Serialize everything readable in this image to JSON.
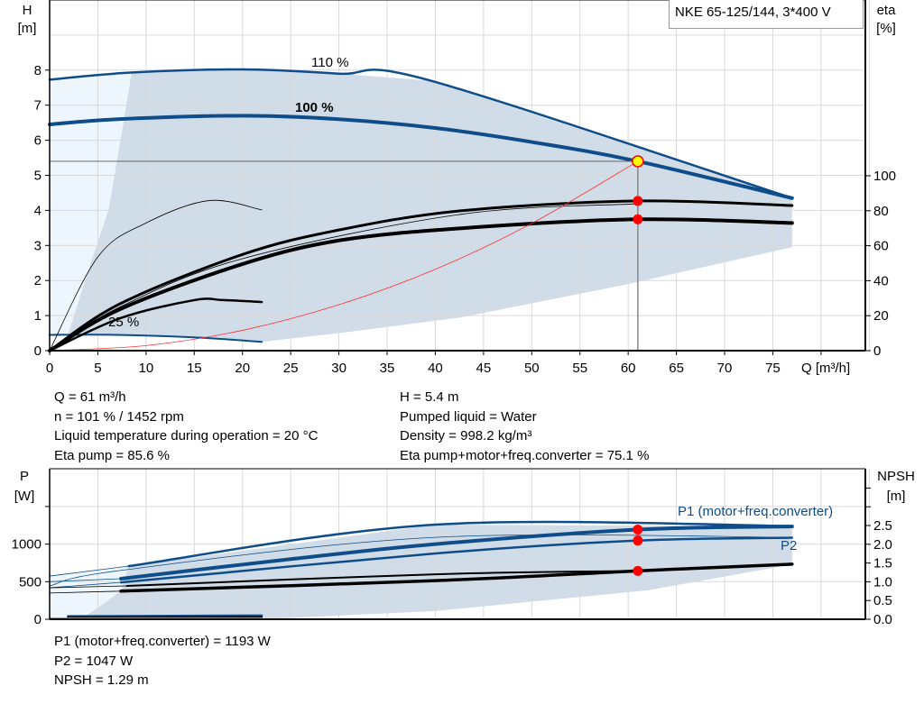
{
  "title": "NKE 65-125/144, 3*400 V",
  "colors": {
    "curve_blue": "#0e4d8a",
    "shade": "#d0dce8",
    "shade_light": "#eef6fd",
    "grid": "#d9d9d9",
    "system_curve": "#ff3030",
    "duty_point": "#ffff00",
    "marker": "#ff0000"
  },
  "info_top": {
    "left": [
      "Q = 61 m³/h",
      "n = 101 % / 1452 rpm",
      "Liquid temperature during operation = 20 °C",
      "Eta pump = 85.6 %"
    ],
    "right": [
      "H = 5.4 m",
      "Pumped liquid = Water",
      "Density = 998.2 kg/m³",
      "Eta pump+motor+freq.converter = 75.1 %"
    ]
  },
  "info_bottom": [
    "P1 (motor+freq.converter) = 1193 W",
    "P2 = 1047 W",
    "NPSH = 1.29 m"
  ],
  "chart_data": [
    {
      "type": "line",
      "ylabel": "H\n[m]",
      "y2label": "eta\n[%]",
      "xlabel": "Q [m³/h]",
      "xlim": [
        0,
        85
      ],
      "ylim": [
        0,
        10
      ],
      "y2lim": [
        0,
        200
      ],
      "grid": true,
      "x_ticks": [
        0,
        5,
        10,
        15,
        20,
        25,
        30,
        35,
        40,
        45,
        50,
        55,
        60,
        65,
        70,
        75
      ],
      "y_ticks": [
        0,
        1,
        2,
        3,
        4,
        5,
        6,
        7,
        8
      ],
      "y2_ticks": [
        0,
        20,
        40,
        60,
        80,
        100
      ],
      "region_light": [
        [
          0,
          0.45
        ],
        [
          0,
          7.73
        ],
        [
          8.5,
          7.93
        ],
        [
          7.6,
          6.4
        ],
        [
          6.1,
          4.0
        ],
        [
          4.2,
          2.45
        ],
        [
          1.9,
          0.45
        ]
      ],
      "region": [
        [
          8.5,
          7.93
        ],
        [
          20,
          8.02
        ],
        [
          30,
          7.9
        ],
        [
          39.5,
          7.7
        ],
        [
          77,
          4.35
        ],
        [
          77,
          2.95
        ],
        [
          60,
          1.9
        ],
        [
          42.7,
          0.95
        ],
        [
          30,
          0.5
        ],
        [
          22,
          0.25
        ],
        [
          15,
          0.38
        ],
        [
          7,
          0.45
        ],
        [
          1.9,
          0.45
        ],
        [
          4.2,
          2.45
        ],
        [
          6.1,
          4.0
        ],
        [
          7.6,
          6.4
        ]
      ],
      "series": [
        {
          "name": "110 %",
          "axis": "H",
          "color": "#0e4d8a",
          "width": 2.5,
          "points": [
            [
              0,
              7.73
            ],
            [
              8.4,
              7.93
            ],
            [
              20,
              8.02
            ],
            [
              30,
              7.9
            ],
            [
              39.5,
              7.7
            ],
            [
              77,
              4.35
            ]
          ]
        },
        {
          "name": "100 %",
          "axis": "H",
          "color": "#0e4d8a",
          "width": 4,
          "points": [
            [
              0,
              6.45
            ],
            [
              7,
              6.6
            ],
            [
              20,
              6.7
            ],
            [
              30,
              6.6
            ],
            [
              40,
              6.35
            ],
            [
              50,
              5.95
            ],
            [
              61,
              5.4
            ],
            [
              77,
              4.35
            ]
          ]
        },
        {
          "name": "25 %",
          "axis": "H",
          "color": "#0e4d8a",
          "width": 2,
          "points": [
            [
              0,
              0.45
            ],
            [
              7,
              0.45
            ],
            [
              15,
              0.38
            ],
            [
              22,
              0.25
            ]
          ]
        },
        {
          "axis": "eta",
          "color": "#000",
          "width": 0.8,
          "points": [
            [
              0,
              0
            ],
            [
              5,
              53.6
            ],
            [
              10,
              73
            ],
            [
              16.5,
              85.8
            ],
            [
              22,
              80.5
            ]
          ]
        },
        {
          "axis": "eta",
          "color": "#000",
          "width": 2.5,
          "points": [
            [
              0,
              0
            ],
            [
              7.3,
              18.5
            ],
            [
              15,
              28.9
            ],
            [
              18,
              28.9
            ],
            [
              22,
              27.8
            ]
          ]
        },
        {
          "axis": "eta",
          "color": "#000",
          "width": 3,
          "points": [
            [
              0,
              0
            ],
            [
              7.3,
              26.8
            ],
            [
              20,
              55
            ],
            [
              30,
              69
            ],
            [
              42.7,
              80
            ],
            [
              61,
              85.6
            ],
            [
              77,
              83
            ]
          ]
        },
        {
          "axis": "eta",
          "color": "#000",
          "width": 0.8,
          "points": [
            [
              0,
              0
            ],
            [
              7.3,
              25
            ],
            [
              20,
              52.6
            ],
            [
              42.7,
              78
            ],
            [
              61,
              84
            ]
          ]
        },
        {
          "axis": "eta",
          "color": "#000",
          "width": 4,
          "points": [
            [
              0,
              0
            ],
            [
              7.3,
              23.7
            ],
            [
              20,
              49.5
            ],
            [
              30,
              63
            ],
            [
              42.7,
              70
            ],
            [
              61,
              75.1
            ],
            [
              77,
              73
            ]
          ]
        },
        {
          "axis": "H",
          "color": "#ff3030",
          "width": 0.8,
          "system_curve": true,
          "points": [
            [
              0,
              0
            ],
            [
              10,
              0.145
            ],
            [
              20,
              0.58
            ],
            [
              30,
              1.31
            ],
            [
              40,
              2.32
            ],
            [
              50,
              3.63
            ],
            [
              61,
              5.4
            ]
          ]
        }
      ],
      "duty_point": {
        "Q": 61,
        "H": 5.4
      },
      "markers": [
        {
          "Q": 61,
          "eta": 85.6
        },
        {
          "Q": 61,
          "eta": 75.1
        }
      ]
    },
    {
      "type": "line",
      "ylabel": "P\n[W]",
      "y2label": "NPSH\n[m]",
      "xlim": [
        0,
        85
      ],
      "ylim": [
        0,
        2000
      ],
      "y2lim": [
        0,
        3.7
      ],
      "grid": true,
      "y_ticks": [
        0,
        500,
        1000
      ],
      "y2_ticks": [
        "0.0",
        "0.5",
        "1.0",
        "1.5",
        "2.0",
        "2.5"
      ],
      "region_light": [
        [
          0,
          0
        ],
        [
          0,
          575
        ],
        [
          8.2,
          707
        ],
        [
          7.4,
          380
        ],
        [
          5,
          150
        ],
        [
          3,
          30
        ]
      ],
      "region": [
        [
          8.2,
          707
        ],
        [
          40,
          1259
        ],
        [
          77,
          1235
        ],
        [
          77,
          730
        ],
        [
          74,
          660
        ],
        [
          62,
          385
        ],
        [
          40,
          110
        ],
        [
          22,
          0
        ],
        [
          3,
          0
        ],
        [
          5,
          150
        ],
        [
          7.4,
          380
        ]
      ],
      "series": [
        {
          "axis": "P",
          "color": "#0e4d8a",
          "width": 0.8,
          "points": [
            [
              0,
              575
            ],
            [
              8.2,
              707
            ]
          ]
        },
        {
          "axis": "P",
          "color": "#0e4d8a",
          "width": 2.5,
          "points": [
            [
              8.2,
              707
            ],
            [
              40,
              1259
            ],
            [
              77,
              1240
            ]
          ]
        },
        {
          "axis": "P",
          "color": "#0e4d8a",
          "width": 0.8,
          "points": [
            [
              0,
              500
            ],
            [
              7.4,
              540
            ]
          ]
        },
        {
          "name": "P1 (motor+freq.converter)",
          "axis": "P",
          "color": "#0e4d8a",
          "width": 4,
          "points": [
            [
              7.4,
              540
            ],
            [
              25,
              800
            ],
            [
              40,
              1000
            ],
            [
              61,
              1193
            ],
            [
              77,
              1235
            ]
          ]
        },
        {
          "axis": "P",
          "color": "#0e4d8a",
          "width": 0.8,
          "points": [
            [
              0,
              445
            ],
            [
              7.4,
              650
            ],
            [
              40,
              1090
            ],
            [
              77,
              1090
            ]
          ]
        },
        {
          "axis": "P",
          "color": "#0e4d8a",
          "width": 0.8,
          "points": [
            [
              0,
              420
            ],
            [
              7.4,
              490
            ]
          ]
        },
        {
          "name": "P2",
          "axis": "P",
          "color": "#0e4d8a",
          "width": 2.5,
          "points": [
            [
              7.4,
              490
            ],
            [
              40,
              875
            ],
            [
              61,
              1047
            ],
            [
              77,
              1085
            ]
          ]
        },
        {
          "axis": "NPSH",
          "color": "#000",
          "width": 0.8,
          "points": [
            [
              0,
              0.84
            ],
            [
              8,
              0.89
            ]
          ]
        },
        {
          "axis": "NPSH",
          "color": "#000",
          "width": 2,
          "points": [
            [
              8,
              0.89
            ],
            [
              40,
              1.2
            ],
            [
              61,
              1.29
            ]
          ]
        },
        {
          "axis": "NPSH",
          "color": "#000",
          "width": 0.8,
          "points": [
            [
              0,
              0.7
            ],
            [
              7.4,
              0.75
            ]
          ]
        },
        {
          "axis": "NPSH",
          "color": "#000",
          "width": 3.5,
          "points": [
            [
              7.4,
              0.75
            ],
            [
              40,
              1.03
            ],
            [
              61,
              1.29
            ],
            [
              77,
              1.47
            ]
          ]
        },
        {
          "axis": "P",
          "color": "#0e4d8a",
          "width": 2.5,
          "points": [
            [
              1.9,
              40
            ],
            [
              22,
              50
            ]
          ]
        },
        {
          "axis": "P",
          "color": "#000",
          "width": 2,
          "points": [
            [
              1.9,
              25
            ],
            [
              22,
              30
            ]
          ]
        },
        {
          "axis": "P",
          "color": "#999",
          "width": 1.5,
          "points": [
            [
              0,
              15
            ],
            [
              22,
              15
            ]
          ]
        }
      ],
      "markers": [
        {
          "Q": 61,
          "P": 1193
        },
        {
          "Q": 61,
          "P": 1047
        },
        {
          "Q": 61,
          "NPSH": 1.29
        }
      ]
    }
  ]
}
